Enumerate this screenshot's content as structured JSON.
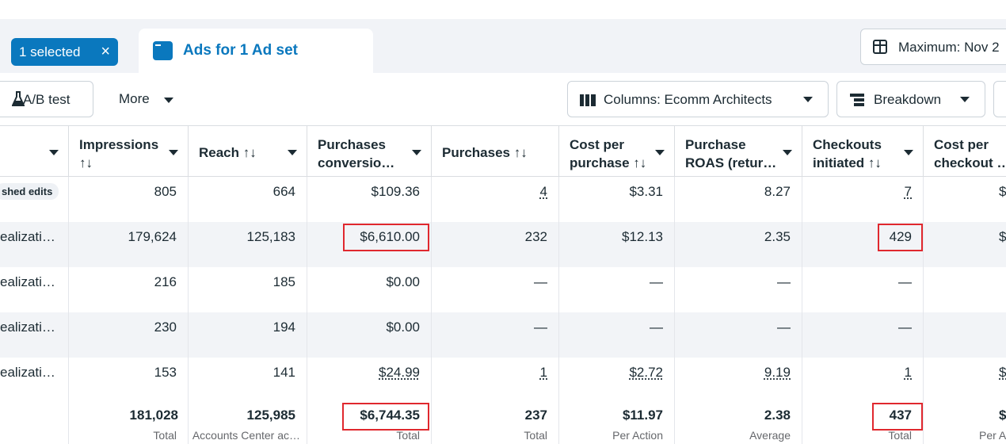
{
  "tabs": {
    "selected_chip": "1 selected",
    "close_glyph": "×",
    "active_tab": "Ads for 1 Ad set",
    "date_range": "Maximum: Nov 2"
  },
  "toolbar": {
    "ab_test": "A/B test",
    "more": "More",
    "columns": "Columns: Ecomm Architects",
    "breakdown": "Breakdown"
  },
  "table": {
    "headers": [
      {
        "l1": "",
        "l2": ""
      },
      {
        "l1": "Impressions",
        "l2": "↑↓"
      },
      {
        "l1": "Reach ↑↓",
        "l2": ""
      },
      {
        "l1": "Purchases",
        "l2": "conversio…"
      },
      {
        "l1": "Purchases  ↑↓",
        "l2": ""
      },
      {
        "l1": "Cost per",
        "l2": "purchase ↑↓"
      },
      {
        "l1": "Purchase",
        "l2": "ROAS (retur…"
      },
      {
        "l1": "Checkouts",
        "l2": "initiated ↑↓"
      },
      {
        "l1": "Cost per",
        "l2": "checkout …"
      }
    ],
    "rows": [
      {
        "name": "shed edits",
        "badge": true,
        "cells": [
          "805",
          "664",
          "$109.36",
          "4",
          "$3.31",
          "8.27",
          "7",
          "$"
        ]
      },
      {
        "name": "ealizati…",
        "badge": false,
        "cells": [
          "179,624",
          "125,183",
          "$6,610.00",
          "232",
          "$12.13",
          "2.35",
          "429",
          "$"
        ]
      },
      {
        "name": "ealizati…",
        "badge": false,
        "cells": [
          "216",
          "185",
          "$0.00",
          "—",
          "—",
          "—",
          "—",
          ""
        ]
      },
      {
        "name": "ealizati…",
        "badge": false,
        "cells": [
          "230",
          "194",
          "$0.00",
          "—",
          "—",
          "—",
          "—",
          ""
        ]
      },
      {
        "name": "ealizati…",
        "badge": false,
        "cells": [
          "153",
          "141",
          "$24.99",
          "1",
          "$2.72",
          "9.19",
          "1",
          "$2"
        ]
      }
    ],
    "totals": {
      "values": [
        "181,028",
        "125,985",
        "$6,744.35",
        "237",
        "$11.97",
        "2.38",
        "437",
        "$"
      ],
      "subs": [
        "Total",
        "Accounts Center ac…",
        "Total",
        "Total",
        "Per Action",
        "Average",
        "Total",
        "Per A"
      ]
    }
  }
}
